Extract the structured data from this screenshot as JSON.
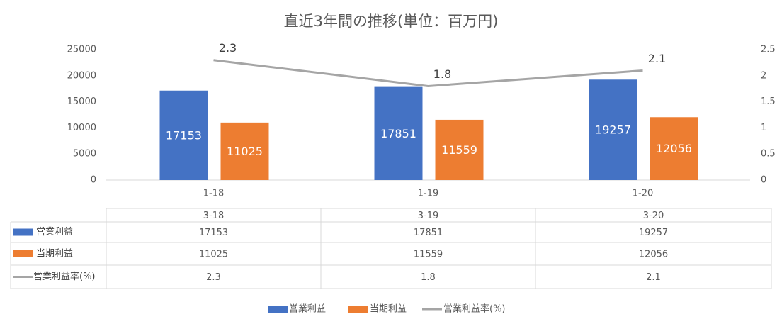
{
  "chart_data": {
    "type": "bar-line",
    "title": "直近3年間の推移(単位：百万円)",
    "categories": [
      "1-18",
      "1-19",
      "1-20"
    ],
    "table_columns": [
      "3-18",
      "3-19",
      "3-20"
    ],
    "series": [
      {
        "name": "営業利益",
        "color": "#4472c4",
        "type": "bar",
        "values": [
          17153,
          17851,
          19257
        ]
      },
      {
        "name": "当期利益",
        "color": "#ed7d31",
        "type": "bar",
        "values": [
          11025,
          11559,
          12056
        ]
      },
      {
        "name": "営業利益率(%)",
        "color": "#a5a5a5",
        "type": "line",
        "axis": "y2",
        "values": [
          2.3,
          1.8,
          2.1
        ]
      }
    ],
    "ylim": [
      0,
      25000
    ],
    "yticks": [
      0,
      5000,
      10000,
      15000,
      20000,
      25000
    ],
    "y2lim": [
      0,
      2.5
    ],
    "y2ticks": [
      0,
      0.5,
      1,
      1.5,
      2,
      2.5
    ],
    "legend": "bottom"
  }
}
